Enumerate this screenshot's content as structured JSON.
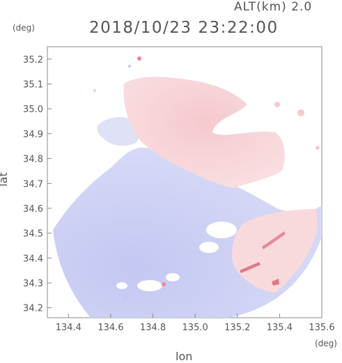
{
  "header": {
    "altitude_label": "ALT(km) 2.0",
    "datetime": "2018/10/23 23:22:00"
  },
  "axes": {
    "x_unit": "(deg)",
    "y_unit": "(deg)",
    "xlabel": "lon",
    "ylabel": "lat"
  },
  "chart_data": {
    "type": "heatmap",
    "xlabel": "lon",
    "ylabel": "lat",
    "xlim": [
      134.3,
      135.6
    ],
    "ylim": [
      34.16,
      35.25
    ],
    "x_ticks": [
      "134.4",
      "134.6",
      "134.8",
      "135.0",
      "135.2",
      "135.4",
      "135.6"
    ],
    "y_ticks": [
      "34.2",
      "34.3",
      "34.4",
      "34.5",
      "34.6",
      "34.7",
      "34.8",
      "34.9",
      "35.0",
      "35.1",
      "35.2"
    ],
    "colors": {
      "approaching": "#c8ccf4",
      "receding": "#f6cfd3",
      "strong_receding": "#e07a86"
    },
    "grid": false,
    "legend": "none"
  }
}
